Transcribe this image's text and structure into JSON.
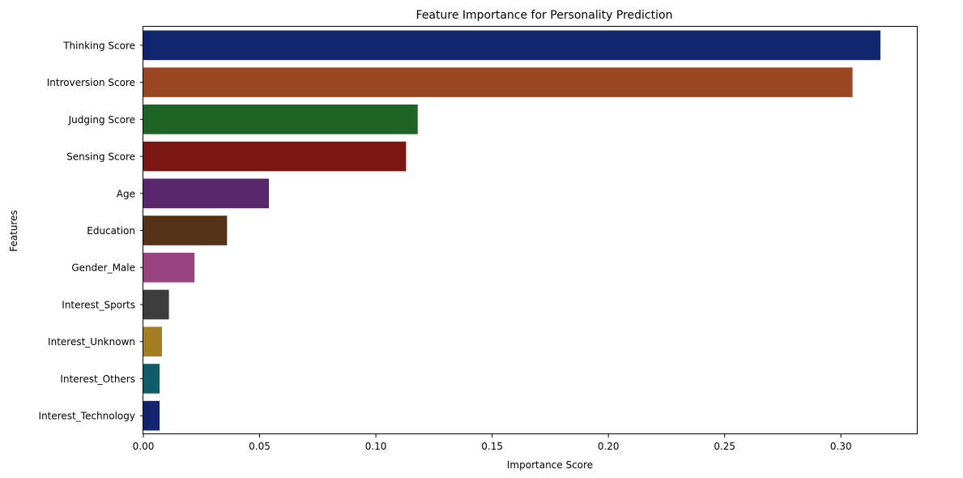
{
  "chart_data": {
    "type": "bar",
    "orientation": "horizontal",
    "title": "Feature Importance for Personality Prediction",
    "xlabel": "Importance Score",
    "ylabel": "Features",
    "xlim": [
      0,
      0.333
    ],
    "xticks": [
      0.0,
      0.05,
      0.1,
      0.15,
      0.2,
      0.25,
      0.3
    ],
    "xtick_labels": [
      "0.00",
      "0.05",
      "0.10",
      "0.15",
      "0.20",
      "0.25",
      "0.30"
    ],
    "grid": false,
    "legend": "none",
    "categories": [
      "Thinking Score",
      "Introversion Score",
      "Judging Score",
      "Sensing Score",
      "Age",
      "Education",
      "Gender_Male",
      "Interest_Sports",
      "Interest_Unknown",
      "Interest_Others",
      "Interest_Technology"
    ],
    "values": [
      0.317,
      0.305,
      0.118,
      0.113,
      0.054,
      0.036,
      0.022,
      0.011,
      0.008,
      0.007,
      0.007
    ],
    "colors": [
      "#12266f",
      "#9b4723",
      "#1f6325",
      "#7b1712",
      "#59276b",
      "#553318",
      "#994380",
      "#3d3d3d",
      "#a47e20",
      "#0f5c6b",
      "#12266f"
    ]
  }
}
